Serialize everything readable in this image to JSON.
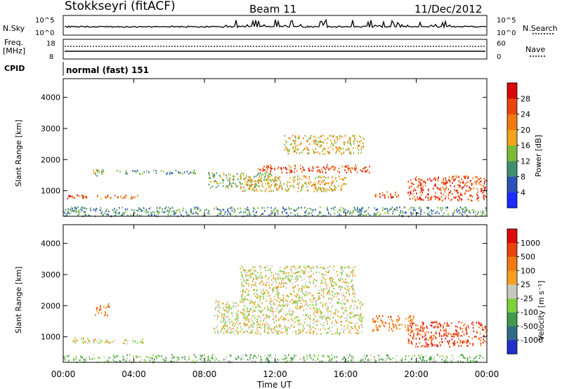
{
  "header": {
    "site": "Stokkseyri (fitACF)",
    "beam": "Beam 11",
    "date": "11/Dec/2012"
  },
  "noise_panel": {
    "left_label": "N.Sky",
    "right_label": "N.Search",
    "left_ticks": [
      "10^5",
      "10^0"
    ],
    "right_ticks": [
      "10^5",
      "10^0"
    ]
  },
  "freq_panel": {
    "left_label_line1": "Freq.",
    "left_label_line2": "[MHz]",
    "right_label": "Nave",
    "left_ticks": [
      "18",
      "8"
    ],
    "right_ticks": [
      "60",
      "0"
    ]
  },
  "cpid_panel": {
    "label": "CPID",
    "value": "normal (fast) 151"
  },
  "chart_data": [
    {
      "type": "heatmap",
      "name": "power",
      "xlabel": "Time UT",
      "ylabel": "Slant Range [km]",
      "x_ticks": [
        "00:00",
        "04:00",
        "08:00",
        "12:00",
        "16:00",
        "20:00",
        "00:00"
      ],
      "x_range_hours": [
        0,
        24
      ],
      "y_ticks": [
        1000,
        2000,
        3000,
        4000
      ],
      "y_range_km": [
        180,
        4600
      ],
      "colorbar": {
        "label": "Power [dB]",
        "ticks": [
          4,
          8,
          12,
          16,
          20,
          24,
          28
        ],
        "colors": [
          "#1a2bff",
          "#2a52b8",
          "#3f8f6e",
          "#7dbb3a",
          "#f2a51a",
          "#f07a10",
          "#e8440c",
          "#d80808"
        ]
      },
      "regions": [
        {
          "t0": 0.0,
          "t1": 1.3,
          "r0": 760,
          "r1": 900,
          "level": 6
        },
        {
          "t0": 1.9,
          "t1": 4.3,
          "r0": 760,
          "r1": 900,
          "level": 5
        },
        {
          "t0": 1.6,
          "t1": 2.4,
          "r0": 1500,
          "r1": 1700,
          "level": 3
        },
        {
          "t0": 3.0,
          "t1": 7.5,
          "r0": 1550,
          "r1": 1680,
          "level": 2
        },
        {
          "t0": 8.2,
          "t1": 12.0,
          "r0": 1100,
          "r1": 1600,
          "level": 3
        },
        {
          "t0": 11.0,
          "t1": 17.5,
          "r0": 1600,
          "r1": 1850,
          "level": 6
        },
        {
          "t0": 12.5,
          "t1": 17.0,
          "r0": 2200,
          "r1": 2800,
          "level": 4
        },
        {
          "t0": 10.0,
          "t1": 16.0,
          "r0": 1000,
          "r1": 1500,
          "level": 4
        },
        {
          "t0": 17.5,
          "t1": 19.0,
          "r0": 800,
          "r1": 1000,
          "level": 6
        },
        {
          "t0": 19.5,
          "t1": 24.0,
          "r0": 700,
          "r1": 1500,
          "level": 6
        },
        {
          "t0": 0.0,
          "t1": 24.0,
          "r0": 200,
          "r1": 500,
          "level": 2
        }
      ]
    },
    {
      "type": "heatmap",
      "name": "velocity",
      "xlabel": "Time UT",
      "ylabel": "Slant Range [km]",
      "x_ticks": [
        "00:00",
        "04:00",
        "08:00",
        "12:00",
        "16:00",
        "20:00",
        "00:00"
      ],
      "x_range_hours": [
        0,
        24
      ],
      "y_ticks": [
        1000,
        2000,
        3000,
        4000
      ],
      "y_range_km": [
        180,
        4600
      ],
      "colorbar": {
        "label": "Velocity [m s⁻¹]",
        "ticks": [
          "1000",
          "500",
          "100",
          "25",
          "-25",
          "-100",
          "-500",
          "-1000"
        ],
        "colors": [
          "#2230c8",
          "#2f6a88",
          "#3f9a4a",
          "#7cd23a",
          "#c8c8c0",
          "#f5a020",
          "#f07a10",
          "#e8440c",
          "#dc0a0a"
        ]
      },
      "regions": [
        {
          "t0": 0.5,
          "t1": 1.5,
          "r0": 800,
          "r1": 1000,
          "level": 4
        },
        {
          "t0": 1.6,
          "t1": 4.5,
          "r0": 800,
          "r1": 950,
          "level": 4
        },
        {
          "t0": 1.8,
          "t1": 2.6,
          "r0": 1700,
          "r1": 2100,
          "level": 6
        },
        {
          "t0": 8.5,
          "t1": 17.0,
          "r0": 1100,
          "r1": 2200,
          "level": 4
        },
        {
          "t0": 10.0,
          "t1": 16.5,
          "r0": 2200,
          "r1": 3300,
          "level": 4
        },
        {
          "t0": 17.5,
          "t1": 20.0,
          "r0": 1200,
          "r1": 1700,
          "level": 6
        },
        {
          "t0": 19.5,
          "t1": 24.0,
          "r0": 700,
          "r1": 1500,
          "level": 7
        },
        {
          "t0": 0.0,
          "t1": 24.0,
          "r0": 200,
          "r1": 450,
          "level": 3
        }
      ]
    }
  ]
}
